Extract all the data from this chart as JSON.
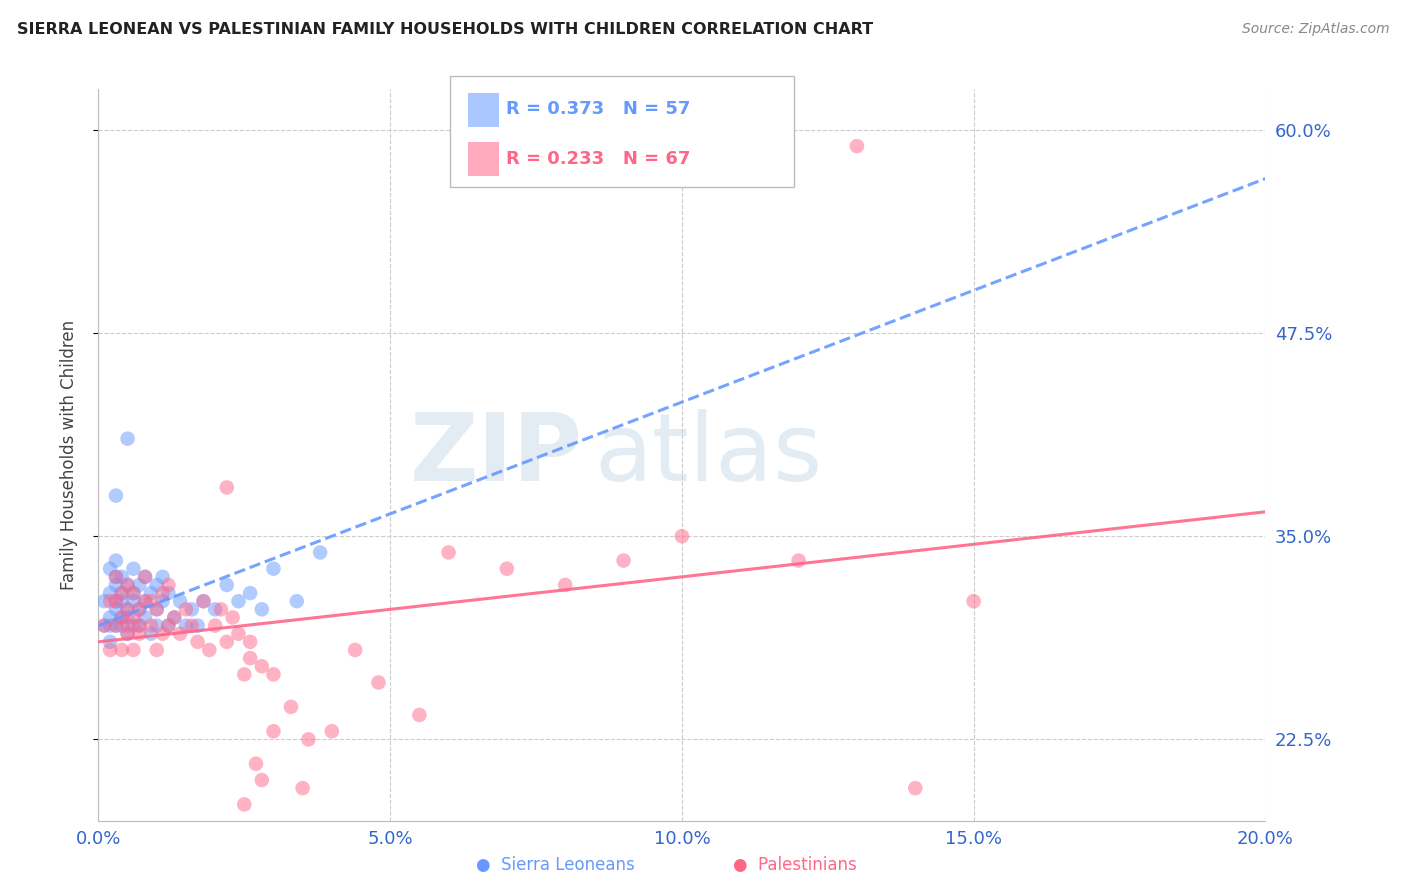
{
  "title": "SIERRA LEONEAN VS PALESTINIAN FAMILY HOUSEHOLDS WITH CHILDREN CORRELATION CHART",
  "source": "Source: ZipAtlas.com",
  "ylabel": "Family Households with Children",
  "xlim": [
    0.0,
    0.2
  ],
  "ylim": [
    0.175,
    0.625
  ],
  "yticks": [
    0.225,
    0.35,
    0.475,
    0.6
  ],
  "ytick_labels": [
    "22.5%",
    "35.0%",
    "47.5%",
    "60.0%"
  ],
  "xticks": [
    0.0,
    0.05,
    0.1,
    0.15,
    0.2
  ],
  "xtick_labels": [
    "0.0%",
    "5.0%",
    "10.0%",
    "15.0%",
    "20.0%"
  ],
  "grid_color": "#cccccc",
  "background_color": "#ffffff",
  "axis_label_color": "#3366cc",
  "sierra_color": "#6699ff",
  "palestinian_color": "#ff6688",
  "sierra_R": 0.373,
  "sierra_N": 57,
  "palestinian_R": 0.233,
  "palestinian_N": 67,
  "watermark_text": "ZIPatlas",
  "watermark_color": "#c8d8e8",
  "watermark_alpha": 0.5,
  "sierra_x": [
    0.001,
    0.001,
    0.002,
    0.002,
    0.002,
    0.002,
    0.002,
    0.003,
    0.003,
    0.003,
    0.003,
    0.003,
    0.003,
    0.004,
    0.004,
    0.004,
    0.004,
    0.004,
    0.005,
    0.005,
    0.005,
    0.005,
    0.006,
    0.006,
    0.006,
    0.006,
    0.007,
    0.007,
    0.007,
    0.008,
    0.008,
    0.008,
    0.009,
    0.009,
    0.01,
    0.01,
    0.01,
    0.011,
    0.011,
    0.012,
    0.012,
    0.013,
    0.014,
    0.015,
    0.016,
    0.017,
    0.018,
    0.02,
    0.022,
    0.024,
    0.026,
    0.028,
    0.03,
    0.034,
    0.038,
    0.005,
    0.003
  ],
  "sierra_y": [
    0.295,
    0.31,
    0.285,
    0.3,
    0.315,
    0.33,
    0.295,
    0.31,
    0.325,
    0.295,
    0.305,
    0.32,
    0.335,
    0.3,
    0.315,
    0.295,
    0.31,
    0.325,
    0.29,
    0.305,
    0.32,
    0.3,
    0.31,
    0.295,
    0.315,
    0.33,
    0.305,
    0.32,
    0.295,
    0.31,
    0.325,
    0.3,
    0.315,
    0.29,
    0.305,
    0.32,
    0.295,
    0.31,
    0.325,
    0.295,
    0.315,
    0.3,
    0.31,
    0.295,
    0.305,
    0.295,
    0.31,
    0.305,
    0.32,
    0.31,
    0.315,
    0.305,
    0.33,
    0.31,
    0.34,
    0.41,
    0.375
  ],
  "palestinian_x": [
    0.001,
    0.002,
    0.002,
    0.003,
    0.003,
    0.003,
    0.004,
    0.004,
    0.004,
    0.005,
    0.005,
    0.005,
    0.005,
    0.006,
    0.006,
    0.006,
    0.007,
    0.007,
    0.007,
    0.008,
    0.008,
    0.009,
    0.009,
    0.01,
    0.01,
    0.011,
    0.011,
    0.012,
    0.012,
    0.013,
    0.014,
    0.015,
    0.016,
    0.017,
    0.018,
    0.019,
    0.02,
    0.021,
    0.022,
    0.023,
    0.024,
    0.025,
    0.026,
    0.027,
    0.028,
    0.03,
    0.033,
    0.036,
    0.04,
    0.044,
    0.048,
    0.055,
    0.06,
    0.07,
    0.08,
    0.09,
    0.1,
    0.12,
    0.14,
    0.13,
    0.15,
    0.022,
    0.026,
    0.03,
    0.035,
    0.025,
    0.028
  ],
  "palestinian_y": [
    0.295,
    0.28,
    0.31,
    0.295,
    0.31,
    0.325,
    0.28,
    0.3,
    0.315,
    0.29,
    0.305,
    0.32,
    0.295,
    0.28,
    0.3,
    0.315,
    0.29,
    0.305,
    0.295,
    0.31,
    0.325,
    0.295,
    0.31,
    0.28,
    0.305,
    0.29,
    0.315,
    0.295,
    0.32,
    0.3,
    0.29,
    0.305,
    0.295,
    0.285,
    0.31,
    0.28,
    0.295,
    0.305,
    0.285,
    0.3,
    0.29,
    0.265,
    0.275,
    0.21,
    0.27,
    0.265,
    0.245,
    0.225,
    0.23,
    0.28,
    0.26,
    0.24,
    0.34,
    0.33,
    0.32,
    0.335,
    0.35,
    0.335,
    0.195,
    0.59,
    0.31,
    0.38,
    0.285,
    0.23,
    0.195,
    0.185,
    0.2
  ]
}
